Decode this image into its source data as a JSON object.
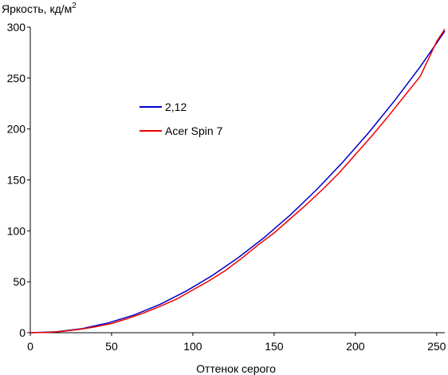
{
  "chart_data": {
    "type": "line",
    "ylabel": "Яркость, кд/м",
    "ylabel_superscript": "2",
    "xlabel": "Оттенок серого",
    "xlim": [
      0,
      255
    ],
    "ylim": [
      0,
      300
    ],
    "x_ticks": [
      0,
      50,
      100,
      150,
      200,
      250
    ],
    "y_ticks": [
      0,
      50,
      100,
      150,
      200,
      250,
      300
    ],
    "grid": false,
    "legend_position": "upper-left-center",
    "series": [
      {
        "name": "2,12",
        "color": "#0000cc",
        "x": [
          0,
          16,
          32,
          48,
          64,
          80,
          96,
          112,
          128,
          144,
          160,
          176,
          192,
          208,
          224,
          240,
          255
        ],
        "y": [
          0,
          0.9,
          4.0,
          9.6,
          17.5,
          28.0,
          41.0,
          56.2,
          73.7,
          93.5,
          115.7,
          140.2,
          167.0,
          196.1,
          227.6,
          261.4,
          296.0
        ]
      },
      {
        "name": "Acer Spin 7",
        "color": "#ee0000",
        "x": [
          0,
          10,
          20,
          30,
          40,
          50,
          60,
          70,
          80,
          90,
          100,
          110,
          120,
          130,
          140,
          150,
          160,
          170,
          180,
          190,
          200,
          210,
          220,
          230,
          240,
          250,
          255
        ],
        "y": [
          0,
          0.3,
          1.3,
          3.2,
          5.8,
          9.0,
          14.0,
          19.5,
          26.0,
          33.0,
          42.0,
          51.0,
          61.0,
          73.0,
          86.0,
          98.0,
          112.0,
          126.0,
          141.0,
          157.0,
          175.0,
          193.0,
          212.0,
          232.0,
          252.0,
          286.0,
          298.0
        ]
      }
    ]
  }
}
